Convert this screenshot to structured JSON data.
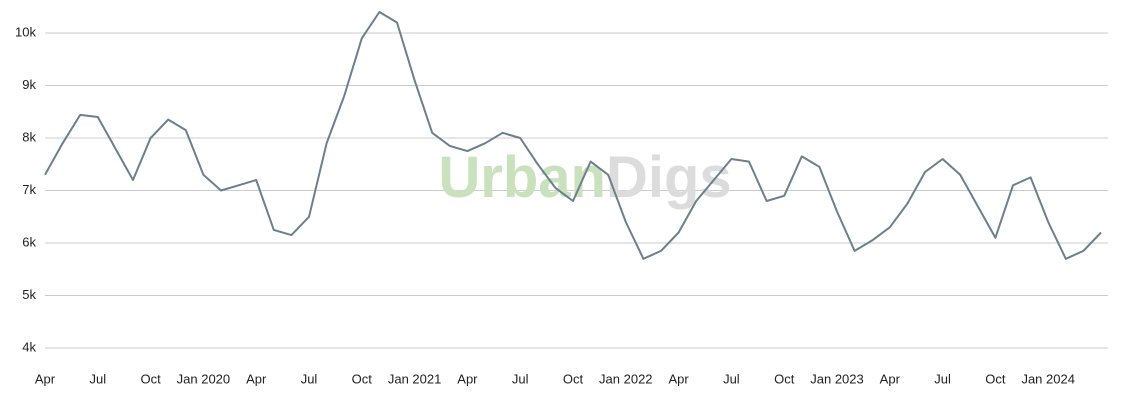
{
  "chart_data": {
    "type": "line",
    "watermark": [
      "Urban",
      "Digs"
    ],
    "x": [
      "2019-04",
      "2019-05",
      "2019-06",
      "2019-07",
      "2019-08",
      "2019-09",
      "2019-10",
      "2019-11",
      "2019-12",
      "2020-01",
      "2020-02",
      "2020-03",
      "2020-04",
      "2020-05",
      "2020-06",
      "2020-07",
      "2020-08",
      "2020-09",
      "2020-10",
      "2020-11",
      "2020-12",
      "2021-01",
      "2021-02",
      "2021-03",
      "2021-04",
      "2021-05",
      "2021-06",
      "2021-07",
      "2021-08",
      "2021-09",
      "2021-10",
      "2021-11",
      "2021-12",
      "2022-01",
      "2022-02",
      "2022-03",
      "2022-04",
      "2022-05",
      "2022-06",
      "2022-07",
      "2022-08",
      "2022-09",
      "2022-10",
      "2022-11",
      "2022-12",
      "2023-01",
      "2023-02",
      "2023-03",
      "2023-04",
      "2023-05",
      "2023-06",
      "2023-07",
      "2023-08",
      "2023-09",
      "2023-10",
      "2023-11",
      "2023-12",
      "2024-01",
      "2024-02",
      "2024-03",
      "2024-04"
    ],
    "series": [
      {
        "color": "#6b7f8e",
        "values": [
          7300,
          7900,
          8440,
          8400,
          7800,
          7200,
          8000,
          8350,
          8150,
          7300,
          7000,
          7100,
          7200,
          6250,
          6150,
          6500,
          7900,
          8800,
          9900,
          10400,
          10200,
          9100,
          8100,
          7850,
          7750,
          7900,
          8100,
          8000,
          7500,
          7050,
          6800,
          7550,
          7300,
          6400,
          5700,
          5850,
          6200,
          6800,
          7200,
          7600,
          7550,
          6800,
          6900,
          7650,
          7450,
          6600,
          5850,
          6050,
          6300,
          6750,
          7350,
          7600,
          7300,
          6700,
          6100,
          7100,
          7250,
          6400,
          5700,
          5850,
          6200
        ]
      }
    ],
    "xlim": [
      "2019-04",
      "2024-04"
    ],
    "xticks": [
      {
        "value": "2019-04",
        "label": "Apr"
      },
      {
        "value": "2019-07",
        "label": "Jul"
      },
      {
        "value": "2019-10",
        "label": "Oct"
      },
      {
        "value": "2020-01",
        "label": "Jan 2020"
      },
      {
        "value": "2020-04",
        "label": "Apr"
      },
      {
        "value": "2020-07",
        "label": "Jul"
      },
      {
        "value": "2020-10",
        "label": "Oct"
      },
      {
        "value": "2021-01",
        "label": "Jan 2021"
      },
      {
        "value": "2021-04",
        "label": "Apr"
      },
      {
        "value": "2021-07",
        "label": "Jul"
      },
      {
        "value": "2021-10",
        "label": "Oct"
      },
      {
        "value": "2022-01",
        "label": "Jan 2022"
      },
      {
        "value": "2022-04",
        "label": "Apr"
      },
      {
        "value": "2022-07",
        "label": "Jul"
      },
      {
        "value": "2022-10",
        "label": "Oct"
      },
      {
        "value": "2023-01",
        "label": "Jan 2023"
      },
      {
        "value": "2023-04",
        "label": "Apr"
      },
      {
        "value": "2023-07",
        "label": "Jul"
      },
      {
        "value": "2023-10",
        "label": "Oct"
      },
      {
        "value": "2024-01",
        "label": "Jan 2024"
      }
    ],
    "ylim": [
      3800,
      10600
    ],
    "yticks": [
      {
        "value": 4000,
        "label": "4k"
      },
      {
        "value": 5000,
        "label": "5k"
      },
      {
        "value": 6000,
        "label": "6k"
      },
      {
        "value": 7000,
        "label": "7k"
      },
      {
        "value": 8000,
        "label": "8k"
      },
      {
        "value": 9000,
        "label": "9k"
      },
      {
        "value": 10000,
        "label": "10k"
      }
    ],
    "grid": true
  }
}
